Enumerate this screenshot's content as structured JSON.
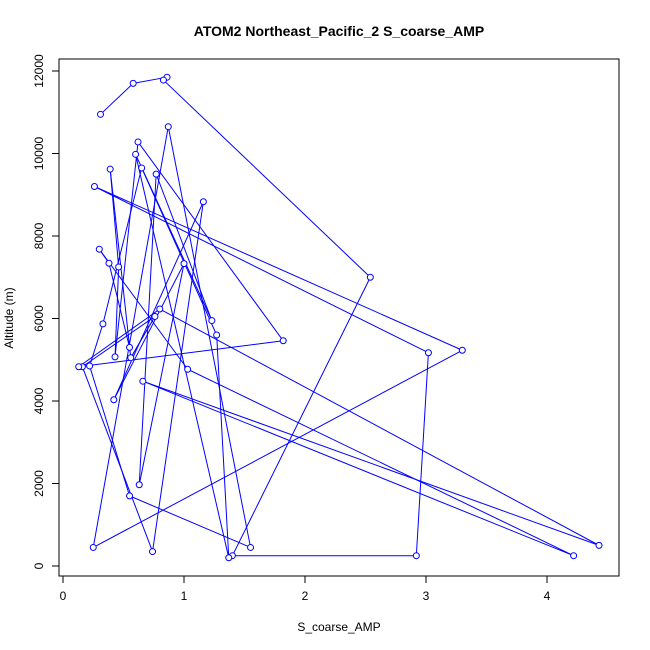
{
  "chart_data": {
    "type": "line",
    "title": "ATOM2 Northeast_Pacific_2 S_coarse_AMP",
    "xlabel": "S_coarse_AMP",
    "ylabel": "Altitude (m)",
    "xlim": [
      0,
      4.45
    ],
    "ylim": [
      0,
      12100
    ],
    "x_ticks": [
      0,
      1,
      2,
      3,
      4
    ],
    "y_ticks": [
      0,
      2000,
      4000,
      6000,
      8000,
      10000,
      12000
    ],
    "grid": false,
    "color": "#0000ff",
    "marker": "open-circle",
    "series": [
      {
        "points": [
          [
            0.31,
            10950
          ],
          [
            0.58,
            11700
          ],
          [
            0.86,
            11850
          ],
          [
            0.83,
            11780
          ],
          [
            2.54,
            7000
          ],
          [
            1.4,
            250
          ],
          [
            2.92,
            250
          ],
          [
            3.02,
            5170
          ],
          [
            0.26,
            9200
          ],
          [
            3.3,
            5230
          ],
          [
            0.25,
            450
          ],
          [
            0.87,
            10650
          ],
          [
            1.55,
            450
          ],
          [
            0.55,
            1700
          ],
          [
            0.22,
            4850
          ],
          [
            0.33,
            5870
          ],
          [
            0.65,
            9650
          ],
          [
            1.27,
            5600
          ],
          [
            1.37,
            200
          ],
          [
            0.6,
            9980
          ],
          [
            1.23,
            5950
          ],
          [
            0.77,
            9500
          ],
          [
            0.63,
            1970
          ],
          [
            1.0,
            7330
          ],
          [
            0.42,
            4030
          ],
          [
            1.16,
            8830
          ],
          [
            0.74,
            350
          ],
          [
            0.16,
            4830
          ],
          [
            0.76,
            6050
          ],
          [
            0.56,
            5050
          ],
          [
            0.39,
            9620
          ],
          [
            0.46,
            7250
          ],
          [
            0.43,
            5070
          ],
          [
            0.62,
            10280
          ],
          [
            1.82,
            5460
          ],
          [
            0.13,
            4830
          ],
          [
            0.8,
            6230
          ],
          [
            4.43,
            500
          ],
          [
            0.66,
            4480
          ],
          [
            4.22,
            250
          ],
          [
            1.03,
            4770
          ],
          [
            0.3,
            7680
          ],
          [
            0.38,
            7340
          ],
          [
            0.55,
            5300
          ]
        ]
      }
    ]
  }
}
